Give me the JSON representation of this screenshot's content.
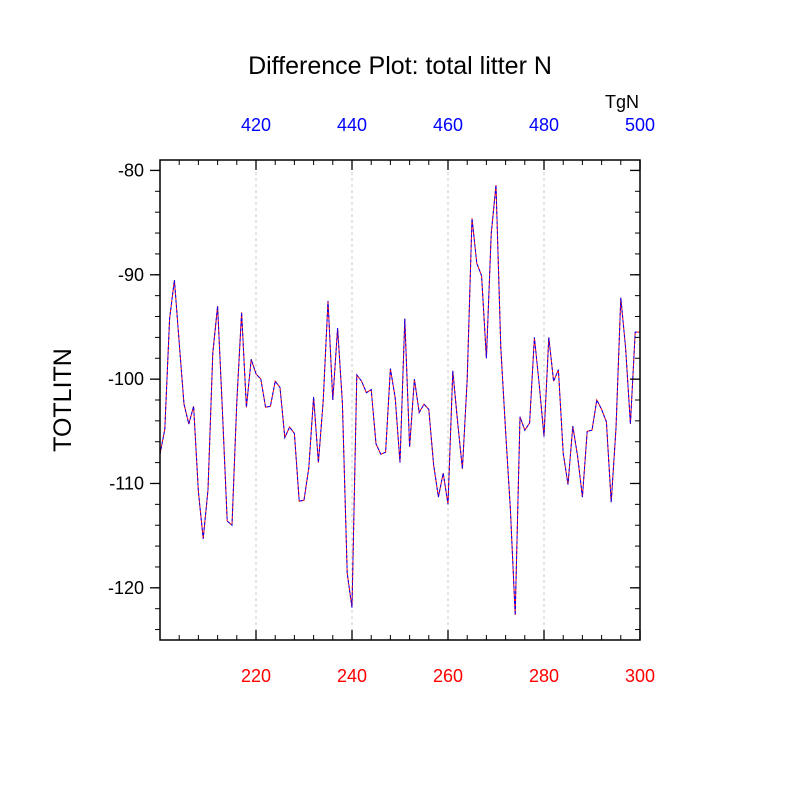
{
  "chart_data": {
    "type": "line",
    "title": "Difference Plot: total litter N",
    "ylabel": "TOTLITN",
    "top_axis_units": "TgN",
    "xlim": [
      200,
      300
    ],
    "ylim": [
      -125,
      -79
    ],
    "grid": "vertical dashed lines at bottom-axis ticks",
    "x_ticks_bottom": [
      220,
      240,
      260,
      280,
      300
    ],
    "x_tick_labels_bottom": [
      "220",
      "240",
      "260",
      "280",
      "300"
    ],
    "x_ticks_top_labels": [
      "420",
      "440",
      "460",
      "480",
      "500"
    ],
    "y_ticks": [
      -80,
      -90,
      -100,
      -110,
      -120
    ],
    "y_tick_labels": [
      "-80",
      "-90",
      "-100",
      "-110",
      "-120"
    ],
    "colors": {
      "bottom_axis": "#ff0000",
      "top_axis": "#0000ff",
      "line_solid": "#ff0000",
      "line_dashed": "#0000ff"
    },
    "x": [
      200,
      201,
      202,
      203,
      204,
      205,
      206,
      207,
      208,
      209,
      210,
      211,
      212,
      213,
      214,
      215,
      216,
      217,
      218,
      219,
      220,
      221,
      222,
      223,
      224,
      225,
      226,
      227,
      228,
      229,
      230,
      231,
      232,
      233,
      234,
      235,
      236,
      237,
      238,
      239,
      240,
      241,
      242,
      243,
      244,
      245,
      246,
      247,
      248,
      249,
      250,
      251,
      252,
      253,
      254,
      255,
      256,
      257,
      258,
      259,
      260,
      261,
      262,
      263,
      264,
      265,
      266,
      267,
      268,
      269,
      270,
      271,
      272,
      273,
      274,
      275,
      276,
      277,
      278,
      279,
      280,
      281,
      282,
      283,
      284,
      285,
      286,
      287,
      288,
      289,
      290,
      291,
      292,
      293,
      294,
      295,
      296,
      297,
      298,
      299,
      300
    ],
    "values": [
      -107.2,
      -104.8,
      -94.2,
      -90.5,
      -96.5,
      -102.4,
      -104.3,
      -102.6,
      -110.8,
      -115.3,
      -110.6,
      -97.5,
      -93.0,
      -103.0,
      -113.6,
      -114.0,
      -102.2,
      -93.6,
      -102.7,
      -98.1,
      -99.5,
      -100.0,
      -102.7,
      -102.6,
      -100.2,
      -100.8,
      -105.6,
      -104.6,
      -105.2,
      -111.7,
      -111.6,
      -108.5,
      -101.7,
      -108.0,
      -102.1,
      -92.5,
      -102.0,
      -95.1,
      -102.3,
      -118.6,
      -121.9,
      -99.6,
      -100.2,
      -101.3,
      -101.0,
      -106.2,
      -107.2,
      -107.0,
      -99.0,
      -101.8,
      -108.0,
      -94.2,
      -106.5,
      -100.0,
      -103.2,
      -102.4,
      -102.9,
      -108.2,
      -111.3,
      -109.0,
      -112.0,
      -99.2,
      -104.1,
      -108.6,
      -100.0,
      -84.6,
      -88.9,
      -90.1,
      -98.0,
      -86.1,
      -81.4,
      -97.0,
      -105.0,
      -112.5,
      -122.6,
      -103.6,
      -104.9,
      -104.2,
      -96.0,
      -100.5,
      -105.5,
      -96.0,
      -100.2,
      -99.1,
      -107.1,
      -110.1,
      -104.5,
      -107.4,
      -111.3,
      -105.0,
      -104.9,
      -102.0,
      -102.9,
      -104.1,
      -111.8,
      -104.7,
      -92.2,
      -97.0,
      -104.3,
      -95.5,
      -95.5
    ]
  }
}
